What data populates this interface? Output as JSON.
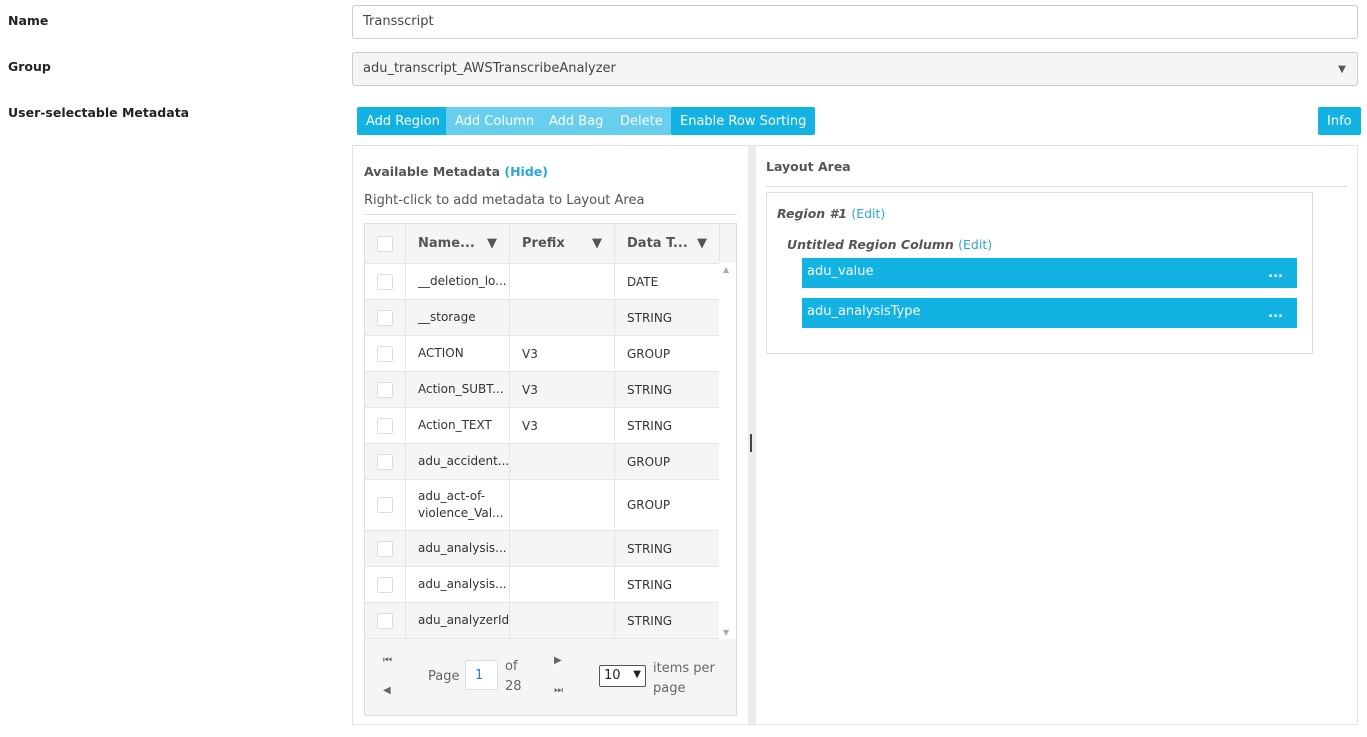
{
  "form": {
    "name_label": "Name",
    "name_value": "Transscript",
    "group_label": "Group",
    "group_value": "adu_transcript_AWSTranscribeAnalyzer",
    "metadata_label": "User-selectable Metadata"
  },
  "toolbar": {
    "add_region": "Add Region",
    "add_column": "Add Column",
    "add_bag": "Add Bag",
    "delete": "Delete",
    "enable_row_sorting": "Enable Row Sorting",
    "info": "Info"
  },
  "available": {
    "title": "Available Metadata",
    "hide": "(Hide)",
    "hint": "Right-click to add metadata to Layout Area",
    "columns": [
      "Name...",
      "Prefix",
      "Data T..."
    ],
    "rows": [
      {
        "name": "__deletion_lo...",
        "prefix": "",
        "type": "DATE"
      },
      {
        "name": "__storage",
        "prefix": "",
        "type": "STRING"
      },
      {
        "name": "ACTION",
        "prefix": "V3",
        "type": "GROUP"
      },
      {
        "name": "Action_SUBT...",
        "prefix": "V3",
        "type": "STRING"
      },
      {
        "name": "Action_TEXT",
        "prefix": "V3",
        "type": "STRING"
      },
      {
        "name": "adu_accident...",
        "prefix": "",
        "type": "GROUP"
      },
      {
        "name": "adu_act-of-violence_Val...",
        "prefix": "",
        "type": "GROUP"
      },
      {
        "name": "adu_analysis...",
        "prefix": "",
        "type": "STRING"
      },
      {
        "name": "adu_analysis...",
        "prefix": "",
        "type": "STRING"
      },
      {
        "name": "adu_analyzerId",
        "prefix": "",
        "type": "STRING"
      }
    ],
    "pager": {
      "page_label": "Page",
      "page": "1",
      "of_label": "of",
      "total_pages": "28",
      "per_page": "10",
      "per_page_label": "items per page"
    }
  },
  "layout": {
    "title": "Layout Area",
    "region": "Region #1",
    "region_edit": "(Edit)",
    "column": "Untitled Region Column",
    "column_edit": "(Edit)",
    "items": [
      {
        "label": "adu_value",
        "more": "..."
      },
      {
        "label": "adu_analysisType",
        "more": "..."
      }
    ]
  },
  "colors": {
    "accent": "#12b3e2",
    "disabled": "#67cfed",
    "link": "#2aa7d9"
  }
}
